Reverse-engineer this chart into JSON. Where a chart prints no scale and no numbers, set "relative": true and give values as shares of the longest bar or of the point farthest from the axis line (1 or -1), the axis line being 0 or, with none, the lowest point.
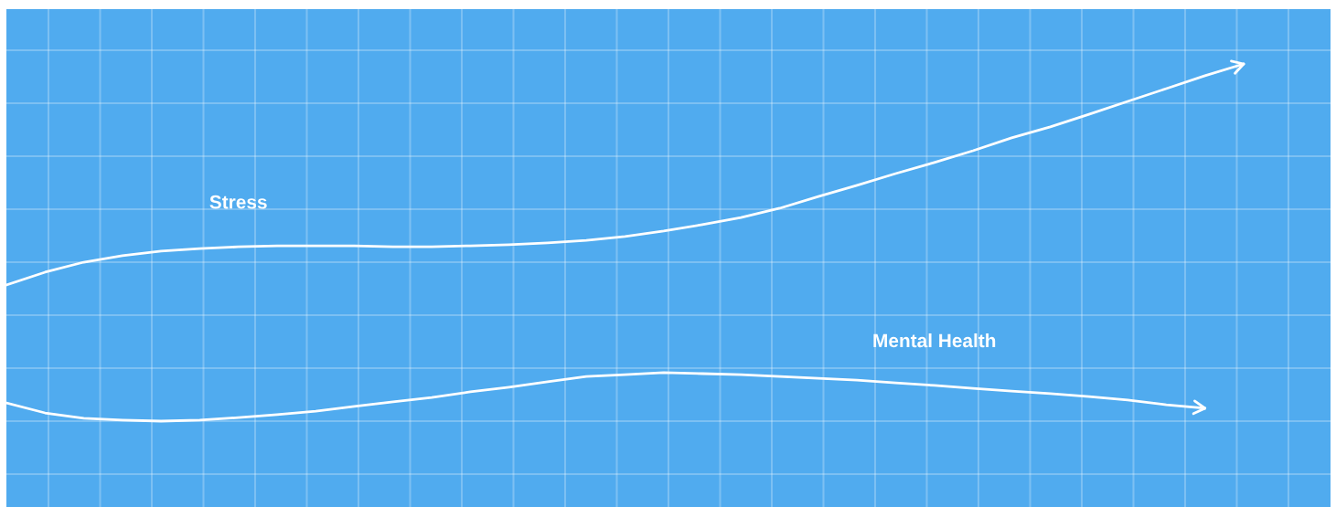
{
  "chart_data": {
    "type": "line",
    "relative": true,
    "grid": true,
    "legend": false,
    "marker": "none",
    "line_style": "solid",
    "categories": [
      null,
      null,
      null,
      null,
      null,
      null,
      null,
      null,
      null,
      null,
      null,
      null,
      null,
      null,
      null,
      null,
      null,
      null,
      null,
      null,
      null,
      null,
      null,
      null,
      null,
      null,
      null,
      null,
      null,
      null,
      null,
      null,
      null
    ],
    "series": [
      {
        "name": "Stress",
        "color": "#ffffff",
        "values": [
          0.381,
          0.417,
          0.445,
          0.463,
          0.476,
          0.483,
          0.488,
          0.491,
          0.491,
          0.491,
          0.488,
          0.488,
          0.491,
          0.494,
          0.499,
          0.506,
          0.517,
          0.532,
          0.55,
          0.57,
          0.596,
          0.629,
          0.66,
          0.693,
          0.724,
          0.757,
          0.793,
          0.824,
          0.859,
          0.895,
          0.931,
          0.967,
          1
        ]
      },
      {
        "name": "Mental Health",
        "color": "#ffffff",
        "values": [
          0.051,
          0.023,
          0.008,
          0.003,
          0,
          0.003,
          0.01,
          0.018,
          0.028,
          0.041,
          0.054,
          0.066,
          0.082,
          0.095,
          0.11,
          0.125,
          0.13,
          0.136,
          0.133,
          0.13,
          0.125,
          0.12,
          0.115,
          0.107,
          0.1,
          0.092,
          0.084,
          0.077,
          0.069,
          0.059,
          0.046,
          0.036,
          null
        ]
      }
    ]
  }
}
